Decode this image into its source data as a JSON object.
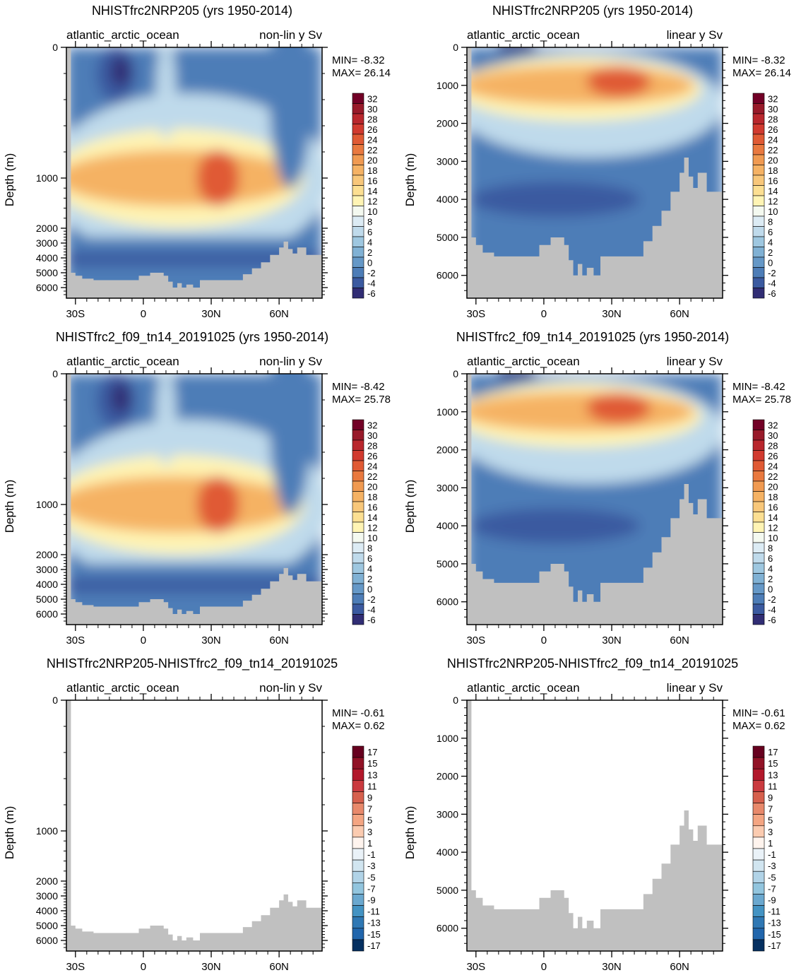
{
  "figure": {
    "panels": [
      {
        "id": "top-left",
        "title": "NHISTfrc2NRP205 (yrs 1950-2014)",
        "region": "atlantic_arctic_ocean",
        "scale_label": "non-lin y Sv",
        "ylabel": "Depth (m)",
        "min_label": "MIN= -8.32",
        "max_label": "MAX= 26.14",
        "y_scale": "nonlinear",
        "y_ticks": [
          "0",
          "1000",
          "2000",
          "3000",
          "4000",
          "5000",
          "6000"
        ],
        "x_ticks": [
          "30S",
          "0",
          "30N",
          "60N"
        ],
        "colorbar_labels": [
          "32",
          "30",
          "28",
          "26",
          "24",
          "22",
          "20",
          "18",
          "16",
          "14",
          "12",
          "10",
          "8",
          "6",
          "4",
          "2",
          "0",
          "-2",
          "-4",
          "-6"
        ],
        "colorbar_type": "sequential"
      },
      {
        "id": "top-right",
        "title": "NHISTfrc2NRP205 (yrs 1950-2014)",
        "region": "atlantic_arctic_ocean",
        "scale_label": "linear y Sv",
        "ylabel": "Depth (m)",
        "min_label": "MIN= -8.32",
        "max_label": "MAX= 26.14",
        "y_scale": "linear",
        "y_ticks": [
          "0",
          "1000",
          "2000",
          "3000",
          "4000",
          "5000",
          "6000"
        ],
        "x_ticks": [
          "30S",
          "0",
          "30N",
          "60N"
        ],
        "colorbar_labels": [
          "32",
          "30",
          "28",
          "26",
          "24",
          "22",
          "20",
          "18",
          "16",
          "14",
          "12",
          "10",
          "8",
          "6",
          "4",
          "2",
          "0",
          "-2",
          "-4",
          "-6"
        ],
        "colorbar_type": "sequential"
      },
      {
        "id": "mid-left",
        "title": "NHISTfrc2_f09_tn14_20191025 (yrs 1950-2014)",
        "region": "atlantic_arctic_ocean",
        "scale_label": "non-lin y Sv",
        "ylabel": "Depth (m)",
        "min_label": "MIN= -8.42",
        "max_label": "MAX= 25.78",
        "y_scale": "nonlinear",
        "y_ticks": [
          "0",
          "1000",
          "2000",
          "3000",
          "4000",
          "5000",
          "6000"
        ],
        "x_ticks": [
          "30S",
          "0",
          "30N",
          "60N"
        ],
        "colorbar_labels": [
          "32",
          "30",
          "28",
          "26",
          "24",
          "22",
          "20",
          "18",
          "16",
          "14",
          "12",
          "10",
          "8",
          "6",
          "4",
          "2",
          "0",
          "-2",
          "-4",
          "-6"
        ],
        "colorbar_type": "sequential"
      },
      {
        "id": "mid-right",
        "title": "NHISTfrc2_f09_tn14_20191025 (yrs 1950-2014)",
        "region": "atlantic_arctic_ocean",
        "scale_label": "linear y Sv",
        "ylabel": "Depth (m)",
        "min_label": "MIN= -8.42",
        "max_label": "MAX= 25.78",
        "y_scale": "linear",
        "y_ticks": [
          "0",
          "1000",
          "2000",
          "3000",
          "4000",
          "5000",
          "6000"
        ],
        "x_ticks": [
          "30S",
          "0",
          "30N",
          "60N"
        ],
        "colorbar_labels": [
          "32",
          "30",
          "28",
          "26",
          "24",
          "22",
          "20",
          "18",
          "16",
          "14",
          "12",
          "10",
          "8",
          "6",
          "4",
          "2",
          "0",
          "-2",
          "-4",
          "-6"
        ],
        "colorbar_type": "sequential"
      },
      {
        "id": "bottom-left",
        "title": "NHISTfrc2NRP205-NHISTfrc2_f09_tn14_20191025",
        "region": "atlantic_arctic_ocean",
        "scale_label": "non-lin y Sv",
        "ylabel": "Depth (m)",
        "min_label": "MIN= -0.61",
        "max_label": "MAX=  0.62",
        "y_scale": "nonlinear",
        "y_ticks": [
          "0",
          "1000",
          "2000",
          "3000",
          "4000",
          "5000",
          "6000"
        ],
        "x_ticks": [
          "30S",
          "0",
          "30N",
          "60N"
        ],
        "colorbar_labels": [
          "17",
          "15",
          "13",
          "11",
          "9",
          "7",
          "5",
          "3",
          "1",
          "-1",
          "-3",
          "-5",
          "-7",
          "-9",
          "-11",
          "-13",
          "-15",
          "-17"
        ],
        "colorbar_type": "diverging"
      },
      {
        "id": "bottom-right",
        "title": "NHISTfrc2NRP205-NHISTfrc2_f09_tn14_20191025",
        "region": "atlantic_arctic_ocean",
        "scale_label": "linear y Sv",
        "ylabel": "Depth (m)",
        "min_label": "MIN= -0.61",
        "max_label": "MAX=  0.62",
        "y_scale": "linear",
        "y_ticks": [
          "0",
          "1000",
          "2000",
          "3000",
          "4000",
          "5000",
          "6000"
        ],
        "x_ticks": [
          "30S",
          "0",
          "30N",
          "60N"
        ],
        "colorbar_labels": [
          "17",
          "15",
          "13",
          "11",
          "9",
          "7",
          "5",
          "3",
          "1",
          "-1",
          "-3",
          "-5",
          "-7",
          "-9",
          "-11",
          "-13",
          "-15",
          "-17"
        ],
        "colorbar_type": "diverging"
      }
    ],
    "colors": {
      "land": "#c0c0c0",
      "sequential": [
        "#720026",
        "#981a2a",
        "#b9272d",
        "#d13a2f",
        "#e05a34",
        "#e9793f",
        "#f09a51",
        "#f5b264",
        "#f8c77a",
        "#fcdf92",
        "#fff4b4",
        "#f4f9f0",
        "#dcebf4",
        "#bfdaeb",
        "#9ec7e0",
        "#80b1d4",
        "#6598c7",
        "#4d7db7",
        "#3b5aa0",
        "#312d74"
      ],
      "diverging": [
        "#67001f",
        "#911226",
        "#b2182b",
        "#ca3a3f",
        "#d6604d",
        "#e8896b",
        "#f4a582",
        "#fbcbb0",
        "#fff4ee",
        "#eaf2f8",
        "#d1e5f0",
        "#b1d3e7",
        "#92c5de",
        "#6aa8cf",
        "#4393c3",
        "#2f78b4",
        "#2166ac",
        "#053061"
      ],
      "field_neg": "#4d7db7",
      "field_core": "#e9793f"
    }
  },
  "chart_data": [
    {
      "type": "heatmap",
      "title": "NHISTfrc2NRP205 (yrs 1950-2014)",
      "subtitle_left": "atlantic_arctic_ocean",
      "subtitle_right": "non-lin y Sv",
      "xlabel": "",
      "ylabel": "Depth (m)",
      "x_ticks": [
        "30S",
        "0",
        "30N",
        "60N"
      ],
      "y_ticks": [
        0,
        1000,
        2000,
        3000,
        4000,
        5000,
        6000
      ],
      "y_scale": "nonlinear (upper 1000 m expanded)",
      "min": -8.32,
      "max": 26.14,
      "levels": [
        -6,
        -4,
        -2,
        0,
        2,
        4,
        6,
        8,
        10,
        12,
        14,
        16,
        18,
        20,
        22,
        24,
        26,
        28,
        30,
        32
      ]
    },
    {
      "type": "heatmap",
      "title": "NHISTfrc2NRP205 (yrs 1950-2014)",
      "subtitle_left": "atlantic_arctic_ocean",
      "subtitle_right": "linear y Sv",
      "xlabel": "",
      "ylabel": "Depth (m)",
      "x_ticks": [
        "30S",
        "0",
        "30N",
        "60N"
      ],
      "y_ticks": [
        0,
        1000,
        2000,
        3000,
        4000,
        5000,
        6000
      ],
      "y_scale": "linear",
      "min": -8.32,
      "max": 26.14,
      "levels": [
        -6,
        -4,
        -2,
        0,
        2,
        4,
        6,
        8,
        10,
        12,
        14,
        16,
        18,
        20,
        22,
        24,
        26,
        28,
        30,
        32
      ]
    },
    {
      "type": "heatmap",
      "title": "NHISTfrc2_f09_tn14_20191025 (yrs 1950-2014)",
      "subtitle_left": "atlantic_arctic_ocean",
      "subtitle_right": "non-lin y Sv",
      "xlabel": "",
      "ylabel": "Depth (m)",
      "x_ticks": [
        "30S",
        "0",
        "30N",
        "60N"
      ],
      "y_ticks": [
        0,
        1000,
        2000,
        3000,
        4000,
        5000,
        6000
      ],
      "y_scale": "nonlinear (upper 1000 m expanded)",
      "min": -8.42,
      "max": 25.78,
      "levels": [
        -6,
        -4,
        -2,
        0,
        2,
        4,
        6,
        8,
        10,
        12,
        14,
        16,
        18,
        20,
        22,
        24,
        26,
        28,
        30,
        32
      ]
    },
    {
      "type": "heatmap",
      "title": "NHISTfrc2_f09_tn14_20191025 (yrs 1950-2014)",
      "subtitle_left": "atlantic_arctic_ocean",
      "subtitle_right": "linear y Sv",
      "xlabel": "",
      "ylabel": "Depth (m)",
      "x_ticks": [
        "30S",
        "0",
        "30N",
        "60N"
      ],
      "y_ticks": [
        0,
        1000,
        2000,
        3000,
        4000,
        5000,
        6000
      ],
      "y_scale": "linear",
      "min": -8.42,
      "max": 25.78,
      "levels": [
        -6,
        -4,
        -2,
        0,
        2,
        4,
        6,
        8,
        10,
        12,
        14,
        16,
        18,
        20,
        22,
        24,
        26,
        28,
        30,
        32
      ]
    },
    {
      "type": "heatmap",
      "title": "NHISTfrc2NRP205-NHISTfrc2_f09_tn14_20191025",
      "subtitle_left": "atlantic_arctic_ocean",
      "subtitle_right": "non-lin y Sv",
      "xlabel": "",
      "ylabel": "Depth (m)",
      "x_ticks": [
        "30S",
        "0",
        "30N",
        "60N"
      ],
      "y_ticks": [
        0,
        1000,
        2000,
        3000,
        4000,
        5000,
        6000
      ],
      "y_scale": "nonlinear (upper 1000 m expanded)",
      "min": -0.61,
      "max": 0.62,
      "levels": [
        -17,
        -15,
        -13,
        -11,
        -9,
        -7,
        -5,
        -3,
        -1,
        1,
        3,
        5,
        7,
        9,
        11,
        13,
        15,
        17
      ]
    },
    {
      "type": "heatmap",
      "title": "NHISTfrc2NRP205-NHISTfrc2_f09_tn14_20191025",
      "subtitle_left": "atlantic_arctic_ocean",
      "subtitle_right": "linear y Sv",
      "xlabel": "",
      "ylabel": "Depth (m)",
      "x_ticks": [
        "30S",
        "0",
        "30N",
        "60N"
      ],
      "y_ticks": [
        0,
        1000,
        2000,
        3000,
        4000,
        5000,
        6000
      ],
      "y_scale": "linear",
      "min": -0.61,
      "max": 0.62,
      "levels": [
        -17,
        -15,
        -13,
        -11,
        -9,
        -7,
        -5,
        -3,
        -1,
        1,
        3,
        5,
        7,
        9,
        11,
        13,
        15,
        17
      ]
    }
  ]
}
